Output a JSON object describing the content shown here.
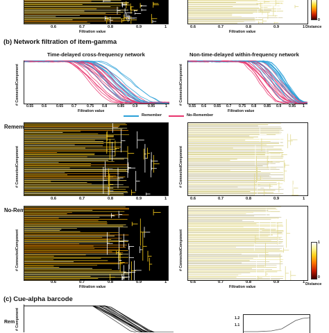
{
  "section_b": {
    "label": "(b)",
    "title": "Network filtration of item-gamma"
  },
  "section_c": {
    "label": "(c)",
    "title": "Cue-alpha barcode"
  },
  "filtration_titles": {
    "left": "Time-delayed cross-frequency network",
    "right": "Non-time-delayed within-frequency network"
  },
  "axis": {
    "filtration_value": "Filtration value",
    "connected_component": "# ConnectedComponent",
    "distance": "Distance"
  },
  "row_labels": {
    "remember": "Remember",
    "no_remember": "No-Remember"
  },
  "legend": {
    "remember": "Remember",
    "no_remember": "No-Remember",
    "remember_color": "#2aa0d8",
    "no_remember_color": "#e8336d"
  },
  "ticks_barcode": [
    "0.6",
    "0.7",
    "0.8",
    "0.9",
    "1"
  ],
  "ticks_filtration": [
    "0.55",
    "0.6",
    "0.65",
    "0.7",
    "0.75",
    "0.8",
    "0.85",
    "0.9",
    "0.95",
    "1"
  ],
  "colorbar_ticks": {
    "top": "1",
    "bottom": "0"
  },
  "panel_c": {
    "left_ylabel_partial": "# Component",
    "row_label_partial": "Rem",
    "right_ticks": [
      "1.2",
      "1.1"
    ]
  },
  "colors": {
    "barcode_bg": "#000000",
    "curve_color": "#ffffff"
  }
}
